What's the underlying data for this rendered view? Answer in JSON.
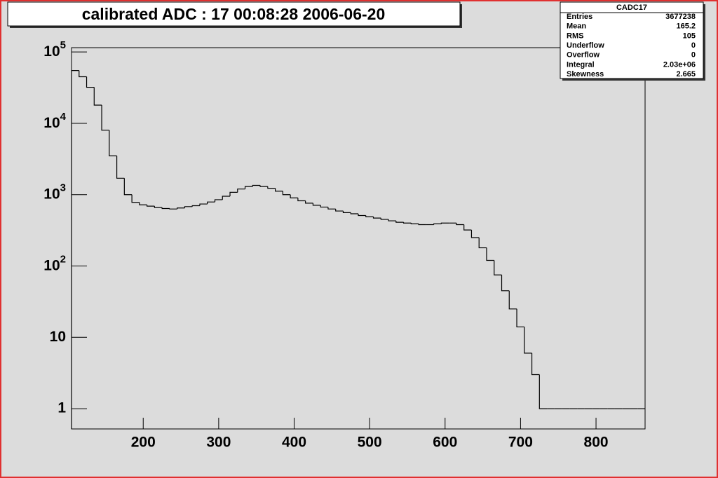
{
  "chart_data": {
    "type": "histogram",
    "title": "calibrated ADC :  17  00:08:28  2006-06-20",
    "log_y": true,
    "color": "#000000",
    "xlim": [
      105,
      865
    ],
    "ylim": [
      0.52,
      115000
    ],
    "xticks": [
      200,
      300,
      400,
      500,
      600,
      700,
      800
    ],
    "yticks": [
      1,
      10,
      {
        "value": 100,
        "label": "10^2"
      },
      {
        "value": 1000,
        "label": "10^3"
      },
      {
        "value": 10000,
        "label": "10^4"
      },
      {
        "value": 100000,
        "label": "10^5"
      }
    ],
    "bins": [
      105,
      115,
      125,
      135,
      145,
      155,
      165,
      175,
      185,
      195,
      205,
      215,
      225,
      235,
      245,
      255,
      265,
      275,
      285,
      295,
      305,
      315,
      325,
      335,
      345,
      355,
      365,
      375,
      385,
      395,
      405,
      415,
      425,
      435,
      445,
      455,
      465,
      475,
      485,
      495,
      505,
      515,
      525,
      535,
      545,
      555,
      565,
      575,
      585,
      595,
      605,
      615,
      625,
      635,
      645,
      655,
      665,
      675,
      685,
      695,
      705,
      715,
      725,
      735,
      745,
      755,
      765,
      775,
      785,
      795,
      805,
      815,
      825,
      835,
      845,
      855,
      865
    ],
    "values": [
      55000,
      45000,
      32000,
      18000,
      8000,
      3500,
      1700,
      1000,
      780,
      720,
      690,
      660,
      640,
      630,
      650,
      680,
      700,
      740,
      790,
      850,
      950,
      1080,
      1200,
      1300,
      1350,
      1300,
      1230,
      1120,
      1000,
      900,
      820,
      760,
      710,
      670,
      630,
      590,
      560,
      540,
      510,
      490,
      470,
      450,
      430,
      410,
      400,
      390,
      380,
      380,
      390,
      400,
      400,
      380,
      320,
      250,
      180,
      120,
      75,
      45,
      25,
      14,
      6,
      3,
      1,
      1,
      1,
      1,
      1,
      1,
      1,
      1,
      1,
      1,
      1,
      1,
      1,
      1
    ],
    "stats_box": {
      "title": "CADC17",
      "rows": [
        [
          "Entries",
          "3677238"
        ],
        [
          "Mean",
          "165.2"
        ],
        [
          "RMS",
          "105"
        ],
        [
          "Underflow",
          "0"
        ],
        [
          "Overflow",
          "0"
        ],
        [
          "Integral",
          "2.03e+06"
        ],
        [
          "Skewness",
          "2.665"
        ]
      ]
    }
  }
}
